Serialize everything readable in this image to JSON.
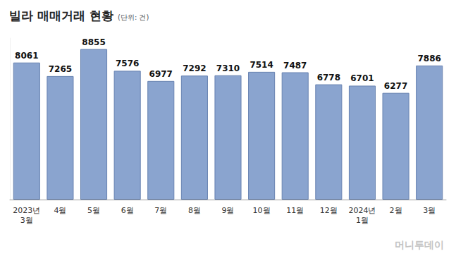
{
  "chart_data": {
    "type": "bar",
    "title": "빌라 매매거래 현황",
    "subtitle": "(단위: 건)",
    "annotations": [
      "머니투데이"
    ],
    "categories": [
      "2023년\n3월",
      "4월",
      "5월",
      "6월",
      "7월",
      "8월",
      "9월",
      "10월",
      "11월",
      "12월",
      "2024년\n1월",
      "2월",
      "3월"
    ],
    "values": [
      8061,
      7265,
      8855,
      7576,
      6977,
      7292,
      7310,
      7514,
      7487,
      6778,
      6701,
      6277,
      7886
    ],
    "color": "#8aa4cf",
    "ylim": [
      0,
      9500
    ],
    "yticks": [
      0
    ],
    "grid": false,
    "data_labels": true,
    "tick_labels": "x"
  }
}
